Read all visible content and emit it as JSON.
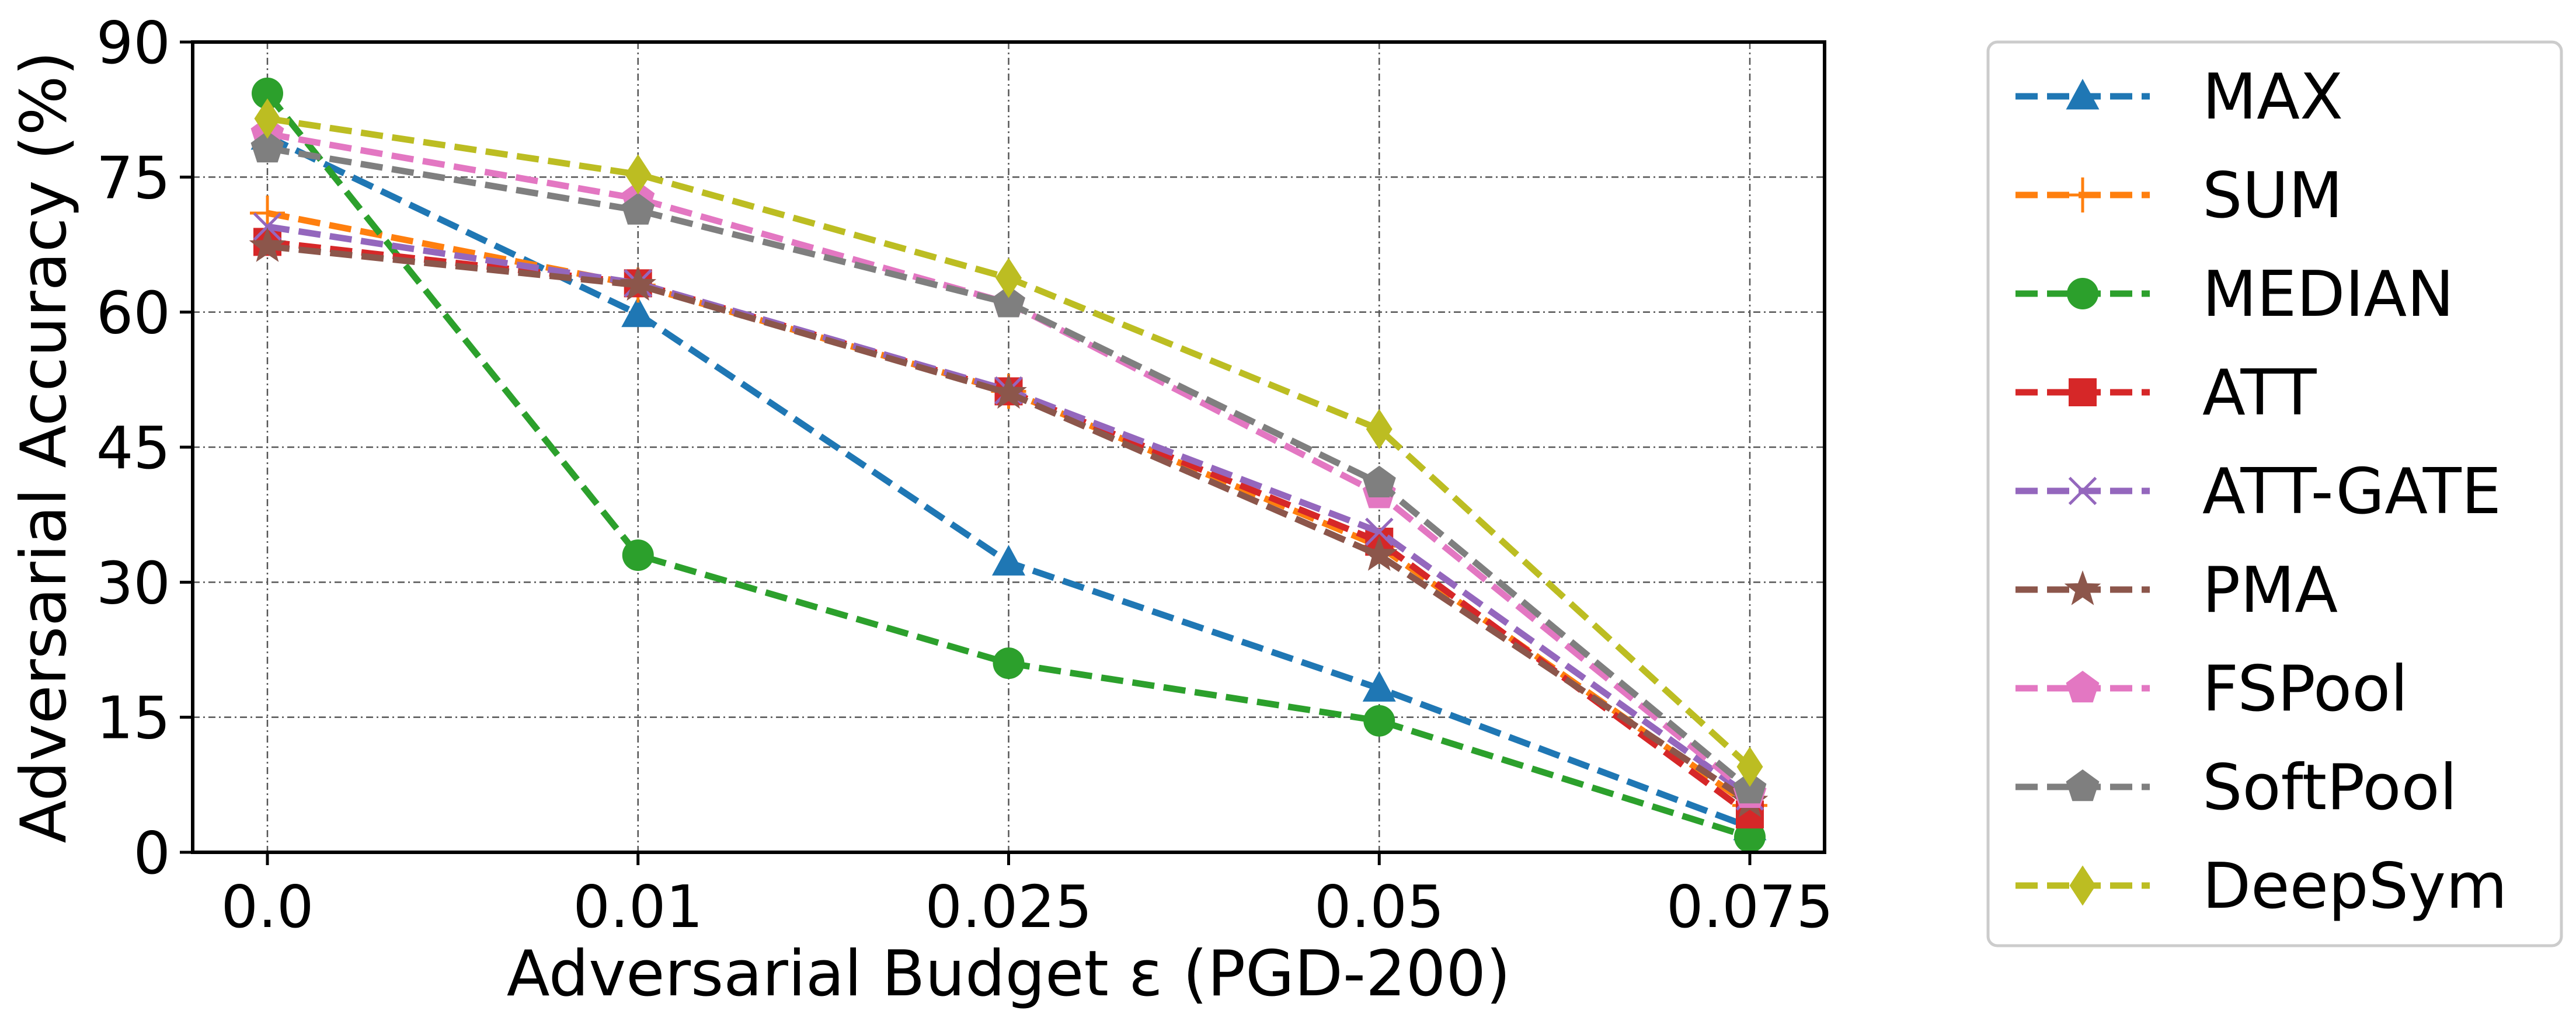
{
  "chart_data": {
    "type": "line",
    "title": "",
    "xlabel": "Adversarial Budget ε (PGD-200)",
    "ylabel": "Adversarial Accuracy (%)",
    "x": [
      "0.0",
      "0.01",
      "0.025",
      "0.05",
      "0.075"
    ],
    "ylim": [
      0,
      90
    ],
    "yticks": [
      0,
      15,
      30,
      45,
      60,
      75,
      90
    ],
    "grid": true,
    "legend_position": "outside-right",
    "series": [
      {
        "name": "MAX",
        "color": "#1f77b4",
        "marker": "triangle",
        "values": [
          79.5,
          59.8,
          32.2,
          18.2,
          2.8
        ]
      },
      {
        "name": "SUM",
        "color": "#ff7f0e",
        "marker": "plus",
        "values": [
          71.0,
          63.0,
          51.2,
          34.0,
          5.2
        ]
      },
      {
        "name": "MEDIAN",
        "color": "#2ca02c",
        "marker": "circle",
        "values": [
          84.3,
          33.0,
          21.0,
          14.6,
          1.7
        ]
      },
      {
        "name": "ATT",
        "color": "#d62728",
        "marker": "square",
        "values": [
          67.8,
          63.2,
          51.2,
          34.5,
          4.2
        ]
      },
      {
        "name": "ATT-GATE",
        "color": "#9467bd",
        "marker": "x",
        "values": [
          69.5,
          63.2,
          51.3,
          35.6,
          6.2
        ]
      },
      {
        "name": "PMA",
        "color": "#8c564b",
        "marker": "star",
        "values": [
          67.3,
          63.0,
          51.0,
          33.0,
          5.6
        ]
      },
      {
        "name": "FSPool",
        "color": "#e377c2",
        "marker": "pentagon",
        "values": [
          79.8,
          72.6,
          61.0,
          39.8,
          6.5
        ]
      },
      {
        "name": "SoftPool",
        "color": "#7f7f7f",
        "marker": "pentagon",
        "values": [
          78.2,
          71.3,
          61.0,
          41.0,
          7.0
        ]
      },
      {
        "name": "DeepSym",
        "color": "#bcbd22",
        "marker": "diamond",
        "values": [
          81.5,
          75.3,
          63.8,
          47.0,
          9.5
        ]
      }
    ]
  }
}
